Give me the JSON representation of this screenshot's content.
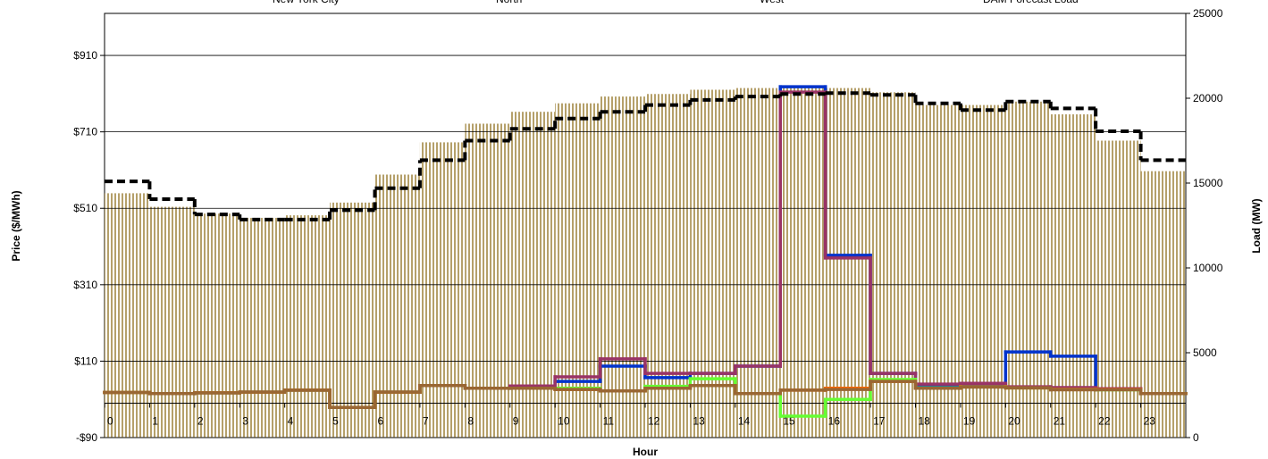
{
  "chart_data": {
    "type": "step",
    "x_label": "Hour",
    "y_label": "Price ($/MWh)",
    "y2_label": "Load (MW)",
    "categories": [
      "0",
      "1",
      "2",
      "3",
      "4",
      "5",
      "6",
      "7",
      "8",
      "9",
      "10",
      "11",
      "12",
      "13",
      "14",
      "15",
      "16",
      "17",
      "18",
      "19",
      "20",
      "21",
      "22",
      "23"
    ],
    "ylim": [
      -90,
      1020
    ],
    "yticks": [
      {
        "value": -90,
        "label": "-$90"
      },
      {
        "value": 110,
        "label": "$110"
      },
      {
        "value": 310,
        "label": "$310"
      },
      {
        "value": 510,
        "label": "$510"
      },
      {
        "value": 710,
        "label": "$710"
      },
      {
        "value": 910,
        "label": "$910"
      }
    ],
    "y2lim": [
      0,
      25000
    ],
    "y2ticks": [
      0,
      5000,
      10000,
      15000,
      20000,
      25000
    ],
    "grid": true,
    "legend": "top",
    "series": [
      {
        "name": "DAM Forecast Load",
        "axis": "y2",
        "kind": "dashed",
        "color": "#000000",
        "values": [
          15100,
          14050,
          13150,
          12850,
          12850,
          13400,
          14700,
          16350,
          17500,
          18200,
          18800,
          19200,
          19600,
          19900,
          20100,
          20250,
          20300,
          20200,
          19700,
          19300,
          19800,
          19400,
          18050,
          16350
        ]
      },
      {
        "axis": "y2",
        "kind": "bars",
        "color": "#b5a06a",
        "values": [
          14400,
          13600,
          13200,
          12950,
          13100,
          13850,
          15500,
          17400,
          18500,
          19200,
          19700,
          20100,
          20250,
          20500,
          20600,
          20700,
          20600,
          20350,
          19600,
          19600,
          19800,
          19050,
          17500,
          15700
        ]
      },
      {
        "name": "New York City",
        "kind": "line",
        "color": "#0033cc",
        "values": [
          28,
          25,
          27,
          29,
          34,
          -11,
          29,
          46,
          39,
          39,
          57,
          97,
          67,
          78,
          97,
          828,
          387,
          78,
          46,
          48,
          134,
          123,
          36,
          25
        ]
      },
      {
        "kind": "line",
        "color": "#993366",
        "values": [
          28,
          25,
          27,
          29,
          34,
          -11,
          29,
          46,
          39,
          45,
          69,
          116,
          78,
          78,
          97,
          814,
          380,
          78,
          50,
          52,
          43,
          41,
          38,
          25
        ]
      },
      {
        "name": "North",
        "kind": "line",
        "color": "#66ff33",
        "values": [
          28,
          25,
          27,
          29,
          34,
          -11,
          29,
          46,
          39,
          39,
          39,
          32,
          44,
          64,
          25,
          -34,
          10,
          62,
          40,
          43,
          40,
          36,
          35,
          25
        ]
      },
      {
        "name": "West",
        "kind": "line",
        "color": "#ff6600",
        "values": [
          28,
          25,
          27,
          29,
          34,
          -11,
          29,
          46,
          39,
          39,
          36,
          32,
          39,
          46,
          25,
          34,
          39,
          57,
          39,
          43,
          40,
          36,
          36,
          25
        ]
      },
      {
        "kind": "line",
        "color": "#996633",
        "values": [
          28,
          25,
          27,
          29,
          34,
          -11,
          29,
          46,
          39,
          39,
          36,
          32,
          39,
          46,
          25,
          34,
          36,
          57,
          39,
          42,
          40,
          35,
          35,
          25
        ]
      }
    ]
  }
}
